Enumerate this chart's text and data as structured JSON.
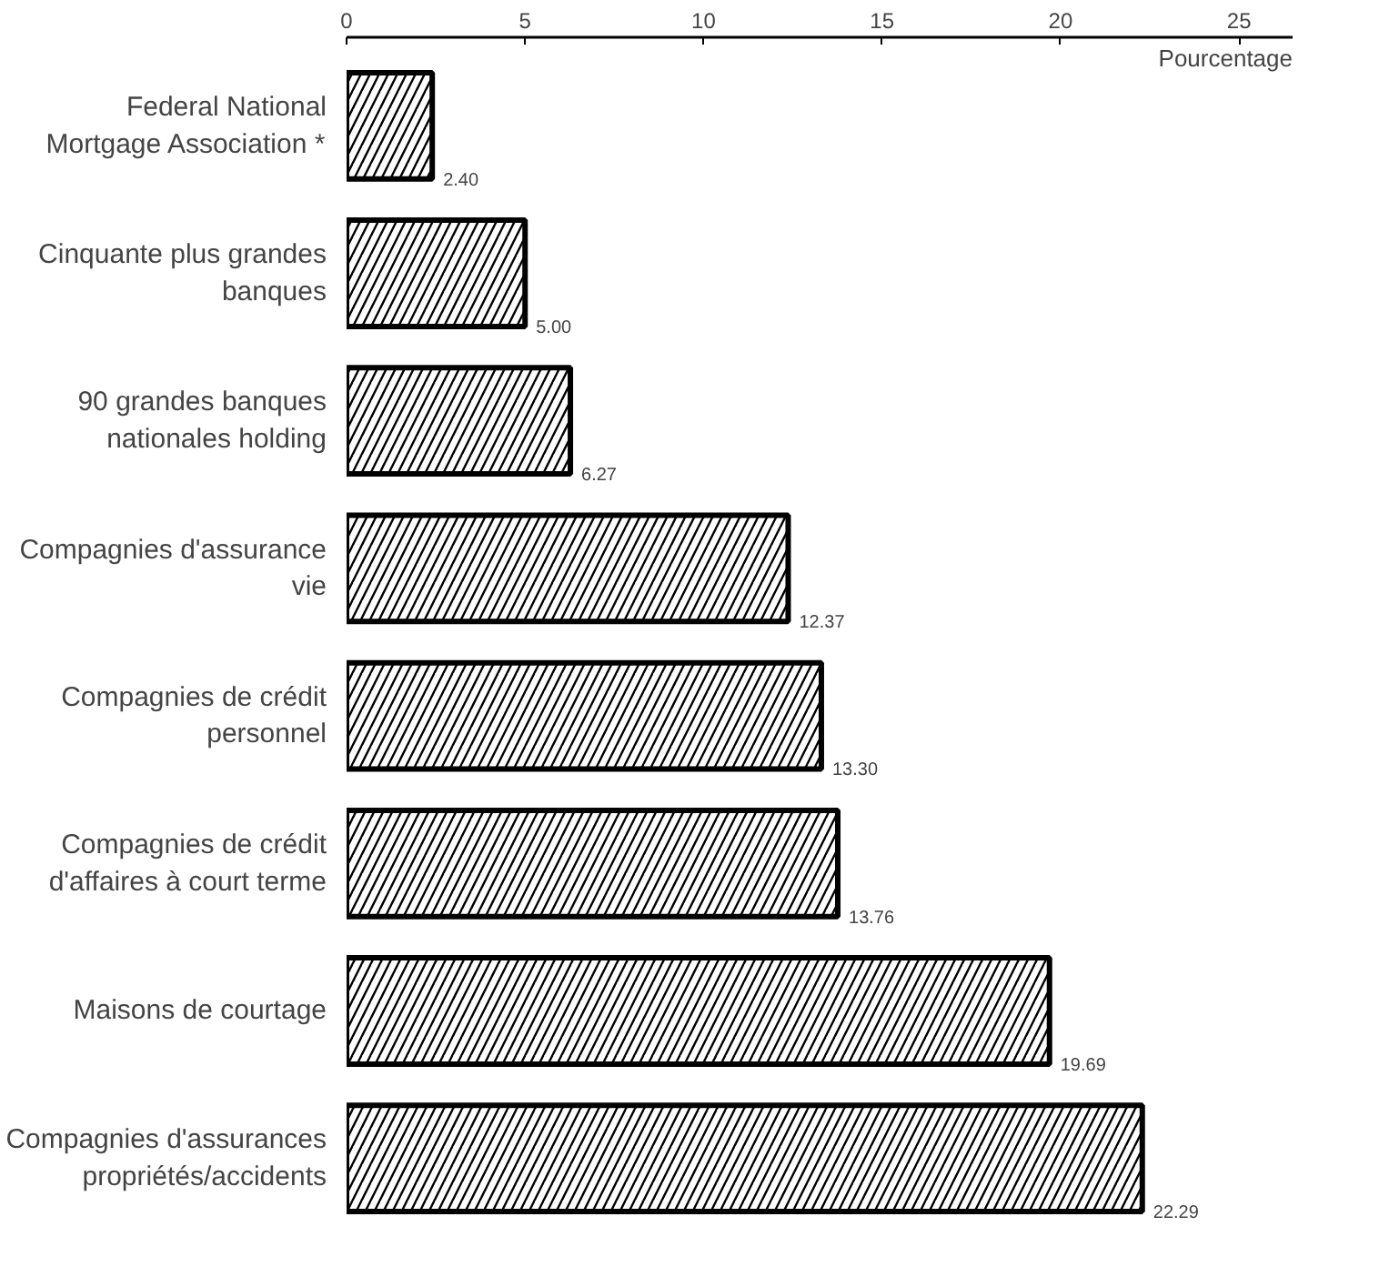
{
  "chart_data": {
    "type": "bar",
    "orientation": "horizontal",
    "xlabel": "Pourcentage",
    "categories": [
      "Federal National Mortgage Association *",
      "Cinquante plus grandes banques",
      "90 grandes banques nationales holding",
      "Compagnies d'assurance vie",
      "Compagnies de crédit personnel",
      "Compagnies de crédit d'affaires à court terme",
      "Maisons de courtage",
      "Compagnies d'assurances propriétés/accidents"
    ],
    "values": [
      2.4,
      5.0,
      6.27,
      12.37,
      13.3,
      13.76,
      19.69,
      22.29
    ],
    "value_labels": [
      "2.40",
      "5.00",
      "6.27",
      "12.37",
      "13.30",
      "13.76",
      "19.69",
      "22.29"
    ],
    "color": "#000000",
    "xlim": [
      0,
      26.5
    ],
    "xticks": [
      0,
      5,
      10,
      15,
      20,
      25
    ],
    "grid": false
  }
}
